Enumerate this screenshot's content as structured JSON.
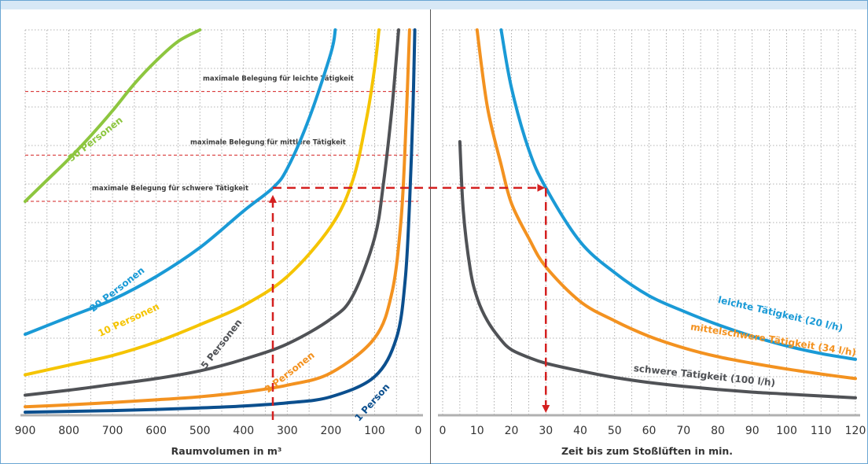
{
  "colors": {
    "grid": "#9a9a9a",
    "axis": "#b0b0b0",
    "guide": "#d42020",
    "people": {
      "50": "#8dc63f",
      "20": "#1a9ad6",
      "10": "#f5c400",
      "5": "#505256",
      "2": "#f39220",
      "1": "#0b4f8e"
    },
    "activity": {
      "light": "#1a9ad6",
      "medium": "#f39220",
      "heavy": "#505256"
    }
  },
  "chart_data": [
    {
      "type": "line",
      "id": "left",
      "xlabel": "Raumvolumen in m³",
      "ylabel": "",
      "xlim": [
        900,
        0
      ],
      "x_reversed": true,
      "ylim": [
        0,
        10
      ],
      "x_ticks": [
        900,
        800,
        700,
        600,
        500,
        400,
        300,
        200,
        100,
        0
      ],
      "grid": true,
      "series": [
        {
          "key": "50",
          "name": "50 Personen",
          "x": [
            900,
            850,
            800,
            750,
            700,
            650,
            600,
            550,
            500
          ],
          "y": [
            5.55,
            6.1,
            6.65,
            7.25,
            7.9,
            8.6,
            9.2,
            9.7,
            10.0
          ]
        },
        {
          "key": "20",
          "name": "20 Personen",
          "x": [
            900,
            800,
            700,
            600,
            500,
            400,
            333,
            300,
            250,
            200,
            190
          ],
          "y": [
            2.1,
            2.55,
            3.0,
            3.6,
            4.35,
            5.3,
            5.9,
            6.4,
            7.7,
            9.4,
            10.0
          ]
        },
        {
          "key": "10",
          "name": "10 Personen",
          "x": [
            900,
            800,
            700,
            600,
            500,
            400,
            300,
            200,
            150,
            120,
            100,
            90
          ],
          "y": [
            1.05,
            1.3,
            1.55,
            1.9,
            2.35,
            2.85,
            3.6,
            4.9,
            6.1,
            7.6,
            9.0,
            10.0
          ]
        },
        {
          "key": "5",
          "name": "5 Personen",
          "x": [
            900,
            800,
            700,
            600,
            500,
            400,
            300,
            200,
            150,
            100,
            80,
            60,
            45
          ],
          "y": [
            0.52,
            0.65,
            0.8,
            0.95,
            1.15,
            1.45,
            1.85,
            2.5,
            3.1,
            4.6,
            6.0,
            8.0,
            10.0
          ]
        },
        {
          "key": "2",
          "name": "2 Personen",
          "x": [
            900,
            800,
            700,
            600,
            500,
            400,
            300,
            200,
            100,
            60,
            40,
            30,
            20
          ],
          "y": [
            0.22,
            0.27,
            0.33,
            0.4,
            0.48,
            0.6,
            0.78,
            1.1,
            2.0,
            3.2,
            5.0,
            7.0,
            10.0
          ]
        },
        {
          "key": "1",
          "name": "1 Person",
          "x": [
            900,
            800,
            700,
            600,
            500,
            400,
            300,
            200,
            100,
            50,
            30,
            20,
            12,
            8
          ],
          "y": [
            0.08,
            0.1,
            0.12,
            0.15,
            0.19,
            0.24,
            0.32,
            0.48,
            1.0,
            2.0,
            3.5,
            5.5,
            8.0,
            10.0
          ]
        }
      ],
      "limits": [
        {
          "label": "maximale Belegung für leichte Tätigkeit",
          "y": 8.4
        },
        {
          "label": "maximale Belegung für mittlere Tätigkeit",
          "y": 6.75
        },
        {
          "label": "maximale Belegung für schwere Tätigkeit",
          "y": 5.55
        }
      ],
      "example": {
        "x": 333,
        "y": 5.9
      }
    },
    {
      "type": "line",
      "id": "right",
      "xlabel": "Zeit bis zum Stoßlüften in min.",
      "ylabel": "",
      "xlim": [
        0,
        120
      ],
      "ylim": [
        0,
        10
      ],
      "x_ticks": [
        0,
        10,
        20,
        30,
        40,
        50,
        60,
        70,
        80,
        90,
        100,
        110,
        120
      ],
      "grid": true,
      "series": [
        {
          "key": "light",
          "name": "leichte Tätigkeit (20 l/h)",
          "x": [
            17,
            20,
            25,
            30,
            40,
            50,
            60,
            70,
            80,
            90,
            100,
            110,
            120
          ],
          "y": [
            10.0,
            8.5,
            6.9,
            5.9,
            4.5,
            3.7,
            3.1,
            2.7,
            2.35,
            2.05,
            1.8,
            1.6,
            1.45
          ]
        },
        {
          "key": "medium",
          "name": "mittelschwere Tätigkeit (34 l/h)",
          "x": [
            10,
            13,
            17,
            20,
            25,
            30,
            40,
            50,
            60,
            70,
            80,
            90,
            100,
            110,
            120
          ],
          "y": [
            10.0,
            8.0,
            6.5,
            5.5,
            4.6,
            3.85,
            2.95,
            2.45,
            2.05,
            1.75,
            1.52,
            1.35,
            1.2,
            1.07,
            0.95
          ]
        },
        {
          "key": "heavy",
          "name": "schwere Tätigkeit (100 l/h)",
          "x": [
            5,
            6,
            8,
            10,
            13,
            17,
            20,
            25,
            30,
            40,
            50,
            60,
            70,
            80,
            90,
            100,
            110,
            120
          ],
          "y": [
            7.1,
            5.3,
            3.8,
            3.05,
            2.45,
            1.95,
            1.7,
            1.5,
            1.35,
            1.15,
            0.98,
            0.85,
            0.75,
            0.67,
            0.6,
            0.55,
            0.5,
            0.45
          ]
        }
      ],
      "example": {
        "x": 30,
        "y": 5.9
      }
    }
  ]
}
